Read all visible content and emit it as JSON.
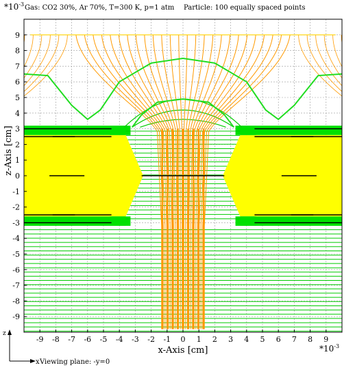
{
  "chart_data": {
    "type": "line",
    "title": "Gas: CO2 30%, Ar 70%, T=300 K, p=1 atm",
    "subtitle": "Particle: 100 equally spaced points",
    "xlabel": "x-Axis [cm]",
    "ylabel": "z-Axis [cm]",
    "x_scale_label": "*10^-3",
    "y_scale_label": "*10^-3",
    "viewing_plane": "Viewing plane: -y=0",
    "axis_glyphs": {
      "z": "z",
      "x": "x"
    },
    "xlim": [
      -10,
      10
    ],
    "ylim": [
      -10,
      10
    ],
    "x_ticks": [
      -9,
      -8,
      -7,
      -6,
      -5,
      -4,
      -3,
      -2,
      -1,
      0,
      1,
      2,
      3,
      4,
      5,
      6,
      7,
      8,
      9
    ],
    "y_ticks": [
      -9,
      -8,
      -7,
      -6,
      -5,
      -4,
      -3,
      -2,
      -1,
      0,
      1,
      2,
      3,
      4,
      5,
      6,
      7,
      8,
      9
    ],
    "grid": true,
    "colors": {
      "dielectric": "#ffff00",
      "electrode": "#00e000",
      "field_lines": "#ff9a00",
      "equipotential": "#00cc00",
      "electrode_edge": "#000000"
    },
    "geometry": {
      "electrode_top_z": [
        2.6,
        3.2
      ],
      "electrode_bottom_z": [
        -3.2,
        -2.6
      ],
      "dielectric_z": [
        -2.6,
        2.6
      ],
      "hole_radius_outer": 3.6,
      "hole_radius_waist": 2.5,
      "pitch": 14
    },
    "series": [
      {
        "name": "",
        "kind": "equipotential",
        "x": [
          -10,
          -8.5,
          -7,
          -6,
          -5.2,
          -4,
          -2,
          0,
          2,
          4,
          5.2,
          6,
          7,
          8.5,
          10
        ],
        "y": [
          6.5,
          6.4,
          4.5,
          3.6,
          4.2,
          6.0,
          7.2,
          7.5,
          7.2,
          6.0,
          4.2,
          3.6,
          4.5,
          6.4,
          6.5
        ]
      },
      {
        "name": "",
        "kind": "equipotential",
        "x": [
          -3.2,
          -2.6,
          -1.6,
          0,
          1.6,
          2.6,
          3.2
        ],
        "y": [
          3.1,
          3.9,
          4.7,
          4.9,
          4.7,
          3.9,
          3.1
        ]
      }
    ],
    "particle_start_z": 9
  }
}
